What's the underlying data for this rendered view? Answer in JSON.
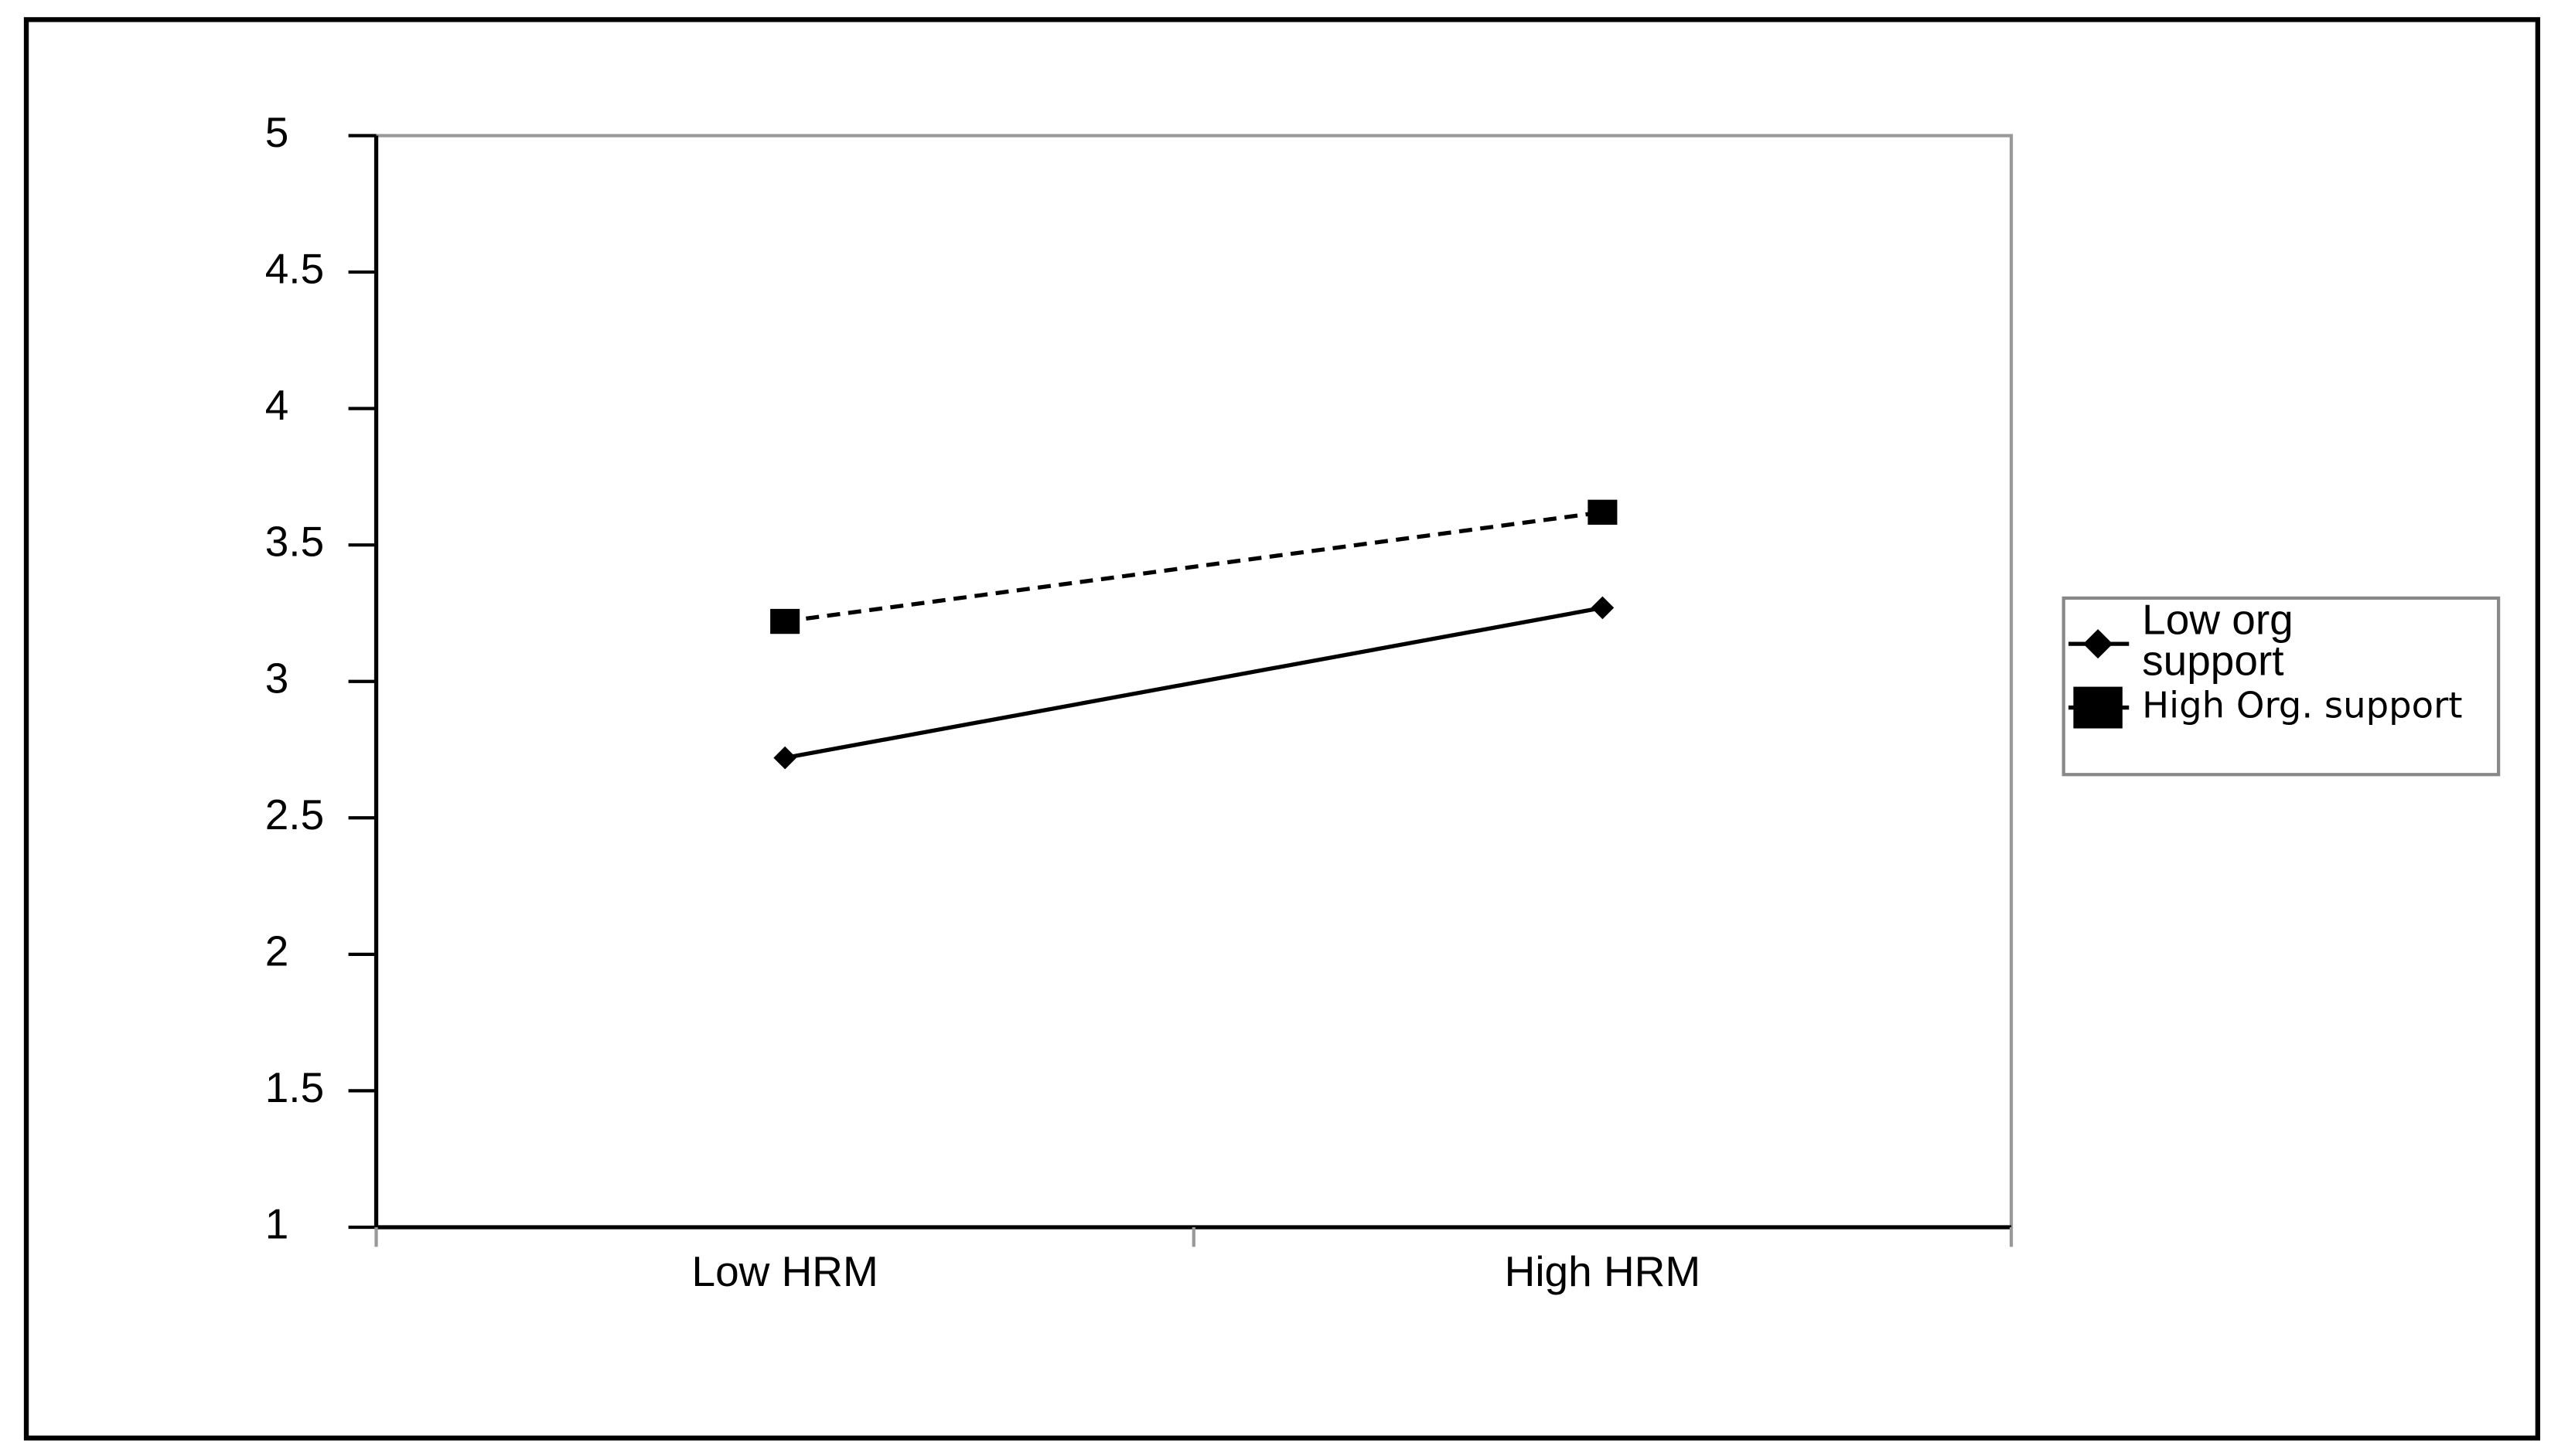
{
  "chart_data": {
    "type": "line",
    "categories": [
      "Low HRM",
      "High HRM"
    ],
    "series": [
      {
        "name": "Low org support",
        "color": "#000000",
        "line_style": "solid",
        "marker": "diamond",
        "values": [
          2.72,
          3.27
        ]
      },
      {
        "name": "High Org. support",
        "color": "#000000",
        "line_style": "dashed",
        "marker": "square",
        "values": [
          3.22,
          3.62
        ]
      }
    ],
    "ylim": [
      1,
      5
    ],
    "yticks": [
      1,
      1.5,
      2,
      2.5,
      3,
      3.5,
      4,
      4.5,
      5
    ],
    "grid": false,
    "legend": "right"
  }
}
